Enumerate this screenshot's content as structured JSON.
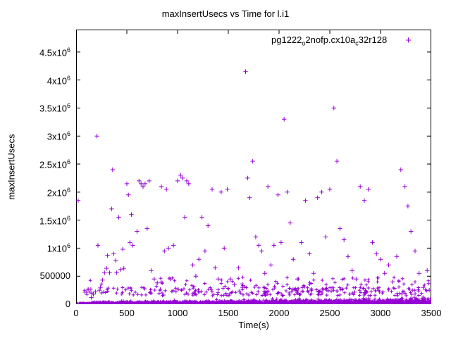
{
  "chart_data": {
    "type": "scatter",
    "title": "maxInsertUsecs vs Time for l.i1",
    "xlabel": "Time(s)",
    "ylabel": "maxInsertUsecs",
    "marker": "plus",
    "color": "#9400d3",
    "xlim": [
      0,
      3500
    ],
    "ylim": [
      0,
      4900000
    ],
    "grid": false,
    "legend_position": "top-right-inside",
    "legend": {
      "parts": [
        "pg1222",
        "o",
        "2nofp.cx10a",
        "c",
        "32r128"
      ]
    },
    "xticks": [
      {
        "v": 0,
        "label": "0"
      },
      {
        "v": 500,
        "label": "500"
      },
      {
        "v": 1000,
        "label": "1000"
      },
      {
        "v": 1500,
        "label": "1500"
      },
      {
        "v": 2000,
        "label": "2000"
      },
      {
        "v": 2500,
        "label": "2500"
      },
      {
        "v": 3000,
        "label": "3000"
      },
      {
        "v": 3500,
        "label": "3500"
      }
    ],
    "yticks": [
      {
        "v": 0,
        "mant": "0",
        "exp": ""
      },
      {
        "v": 500000,
        "mant": "500000",
        "exp": ""
      },
      {
        "v": 1000000,
        "mant": "1x10",
        "exp": "6"
      },
      {
        "v": 1500000,
        "mant": "1.5x10",
        "exp": "6"
      },
      {
        "v": 2000000,
        "mant": "2x10",
        "exp": "6"
      },
      {
        "v": 2500000,
        "mant": "2.5x10",
        "exp": "6"
      },
      {
        "v": 3000000,
        "mant": "3x10",
        "exp": "6"
      },
      {
        "v": 3500000,
        "mant": "3.5x10",
        "exp": "6"
      },
      {
        "v": 4000000,
        "mant": "4x10",
        "exp": "6"
      },
      {
        "v": 4500000,
        "mant": "4.5x10",
        "exp": "6"
      }
    ],
    "outliers": [
      [
        20,
        1850000
      ],
      [
        150,
        120000
      ],
      [
        170,
        180000
      ],
      [
        190,
        220000
      ],
      [
        205,
        3000000
      ],
      [
        215,
        1050000
      ],
      [
        230,
        250000
      ],
      [
        240,
        300000
      ],
      [
        260,
        430000
      ],
      [
        280,
        560000
      ],
      [
        300,
        640000
      ],
      [
        310,
        870000
      ],
      [
        330,
        560000
      ],
      [
        350,
        1700000
      ],
      [
        360,
        2400000
      ],
      [
        370,
        900000
      ],
      [
        390,
        780000
      ],
      [
        400,
        560000
      ],
      [
        420,
        1550000
      ],
      [
        440,
        620000
      ],
      [
        460,
        980000
      ],
      [
        470,
        640000
      ],
      [
        500,
        2150000
      ],
      [
        515,
        1950000
      ],
      [
        530,
        1100000
      ],
      [
        545,
        1600000
      ],
      [
        560,
        1050000
      ],
      [
        600,
        1300000
      ],
      [
        620,
        2200000
      ],
      [
        640,
        2150000
      ],
      [
        660,
        2100000
      ],
      [
        680,
        2150000
      ],
      [
        700,
        1350000
      ],
      [
        720,
        2200000
      ],
      [
        740,
        600000
      ],
      [
        770,
        450000
      ],
      [
        800,
        380000
      ],
      [
        840,
        2100000
      ],
      [
        870,
        950000
      ],
      [
        890,
        2050000
      ],
      [
        910,
        1000000
      ],
      [
        930,
        450000
      ],
      [
        960,
        1050000
      ],
      [
        1000,
        2200000
      ],
      [
        1030,
        2300000
      ],
      [
        1050,
        2250000
      ],
      [
        1070,
        1550000
      ],
      [
        1090,
        2200000
      ],
      [
        1110,
        2150000
      ],
      [
        1150,
        700000
      ],
      [
        1180,
        500000
      ],
      [
        1210,
        800000
      ],
      [
        1240,
        1550000
      ],
      [
        1270,
        950000
      ],
      [
        1300,
        1400000
      ],
      [
        1340,
        2050000
      ],
      [
        1370,
        650000
      ],
      [
        1400,
        450000
      ],
      [
        1430,
        2000000
      ],
      [
        1460,
        1000000
      ],
      [
        1490,
        2050000
      ],
      [
        1520,
        450000
      ],
      [
        1560,
        350000
      ],
      [
        1600,
        650000
      ],
      [
        1640,
        300000
      ],
      [
        1670,
        4150000
      ],
      [
        1690,
        2250000
      ],
      [
        1710,
        1900000
      ],
      [
        1740,
        2550000
      ],
      [
        1770,
        1200000
      ],
      [
        1800,
        1050000
      ],
      [
        1830,
        950000
      ],
      [
        1860,
        550000
      ],
      [
        1890,
        2100000
      ],
      [
        1920,
        700000
      ],
      [
        1950,
        1050000
      ],
      [
        1990,
        1950000
      ],
      [
        2020,
        1100000
      ],
      [
        2050,
        3300000
      ],
      [
        2080,
        2000000
      ],
      [
        2110,
        1450000
      ],
      [
        2140,
        800000
      ],
      [
        2180,
        450000
      ],
      [
        2220,
        1100000
      ],
      [
        2260,
        1850000
      ],
      [
        2300,
        900000
      ],
      [
        2340,
        550000
      ],
      [
        2380,
        1900000
      ],
      [
        2420,
        2000000
      ],
      [
        2460,
        1200000
      ],
      [
        2500,
        2050000
      ],
      [
        2540,
        3500000
      ],
      [
        2570,
        2550000
      ],
      [
        2600,
        1350000
      ],
      [
        2640,
        1150000
      ],
      [
        2680,
        850000
      ],
      [
        2720,
        600000
      ],
      [
        2760,
        450000
      ],
      [
        2800,
        2100000
      ],
      [
        2840,
        1850000
      ],
      [
        2880,
        2050000
      ],
      [
        2920,
        1100000
      ],
      [
        2960,
        900000
      ],
      [
        3000,
        800000
      ],
      [
        3040,
        550000
      ],
      [
        3080,
        700000
      ],
      [
        3120,
        400000
      ],
      [
        3160,
        850000
      ],
      [
        3200,
        2400000
      ],
      [
        3240,
        2100000
      ],
      [
        3270,
        1750000
      ],
      [
        3300,
        1300000
      ],
      [
        3340,
        950000
      ],
      [
        3380,
        550000
      ],
      [
        3420,
        300000
      ],
      [
        3460,
        600000
      ],
      [
        3480,
        250000
      ]
    ],
    "baseline_bands": [
      {
        "count": 2400,
        "x_min": 10,
        "x_max": 3500,
        "y_min": 3000,
        "y_scale": 40000,
        "y_max": 150000,
        "dist": "halfnormal"
      },
      {
        "count": 260,
        "x_min": 60,
        "x_max": 3500,
        "y_min": 150000,
        "y_max": 300000,
        "dist": "uniform"
      },
      {
        "count": 70,
        "x_min": 100,
        "x_max": 3500,
        "y_min": 300000,
        "y_max": 480000,
        "dist": "uniform"
      }
    ],
    "seed": 1222
  }
}
